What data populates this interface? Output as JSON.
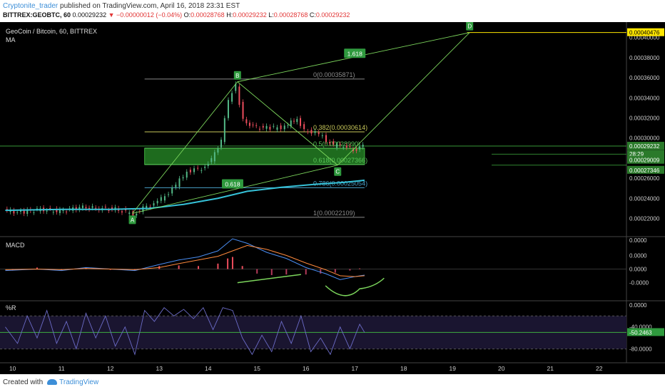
{
  "header": {
    "author": "Cryptonite_trader",
    "published_text": " published on TradingView.com, April 16, 2018 23:31 EST",
    "symbol": "BITTREX:GEOBTC, 60",
    "last": "0.00029232",
    "change": "▼ −0.00000012 (−0.04%)",
    "o_label": "O:",
    "o": "0.00028768",
    "h_label": "H:",
    "h": "0.00029232",
    "l_label": "L:",
    "l": "0.00028768",
    "c_label": "C:",
    "c": "0.00029232"
  },
  "footer": {
    "created_with": "Created with",
    "brand": "TradingView"
  },
  "colors": {
    "background": "#000000",
    "up": "#53b987",
    "down": "#eb4d5c",
    "ma": "#36c2d8",
    "fib_line": "#555555",
    "pattern": "#7cd65c",
    "zone": "#1e6b1e",
    "price_axis_bg": "#000000",
    "highlight_axis": "#ffe600",
    "macd_line": "#4a8df2",
    "signal_line": "#ff8a3d",
    "wr_line": "#6c6cc8"
  },
  "chart_data": [
    {
      "type": "candlestick",
      "title": "GeoCoin / Bitcoin, 60, BITTREX",
      "indicator_label": "MA",
      "x_ticks": [
        "10",
        "11",
        "12",
        "13",
        "14",
        "15",
        "16",
        "17",
        "18",
        "19",
        "20",
        "21",
        "22"
      ],
      "x_range": [
        9.8,
        22.5
      ],
      "y_ticks": [
        "0.00040000",
        "0.00038000",
        "0.00036000",
        "0.00034000",
        "0.00032000",
        "0.00030000",
        "0.00028000",
        "0.00026000",
        "0.00024000",
        "0.00022000"
      ],
      "y_range": [
        0.000204,
        0.000414
      ],
      "price_series": [
        {
          "x": 9.85,
          "y": 0.000228
        },
        {
          "x": 10.2,
          "y": 0.000226
        },
        {
          "x": 10.6,
          "y": 0.000229
        },
        {
          "x": 11.0,
          "y": 0.000227
        },
        {
          "x": 11.4,
          "y": 0.000231
        },
        {
          "x": 11.8,
          "y": 0.00023
        },
        {
          "x": 12.2,
          "y": 0.000229
        },
        {
          "x": 12.5,
          "y": 0.000224
        },
        {
          "x": 12.7,
          "y": 0.00023
        },
        {
          "x": 13.0,
          "y": 0.000236
        },
        {
          "x": 13.3,
          "y": 0.000249
        },
        {
          "x": 13.6,
          "y": 0.000267
        },
        {
          "x": 13.9,
          "y": 0.00027
        },
        {
          "x": 14.1,
          "y": 0.000278
        },
        {
          "x": 14.3,
          "y": 0.000298
        },
        {
          "x": 14.45,
          "y": 0.000338
        },
        {
          "x": 14.6,
          "y": 0.000352
        },
        {
          "x": 14.75,
          "y": 0.000318
        },
        {
          "x": 14.95,
          "y": 0.000311
        },
        {
          "x": 15.3,
          "y": 0.00031
        },
        {
          "x": 15.6,
          "y": 0.000311
        },
        {
          "x": 15.85,
          "y": 0.00032
        },
        {
          "x": 16.0,
          "y": 0.000308
        },
        {
          "x": 16.3,
          "y": 0.000304
        },
        {
          "x": 16.6,
          "y": 0.000292
        },
        {
          "x": 16.8,
          "y": 0.000293
        },
        {
          "x": 17.0,
          "y": 0.000288
        },
        {
          "x": 17.2,
          "y": 0.000292
        }
      ],
      "ma_series": [
        {
          "x": 9.85,
          "y": 0.000228
        },
        {
          "x": 11.0,
          "y": 0.000229
        },
        {
          "x": 12.0,
          "y": 0.000229
        },
        {
          "x": 12.8,
          "y": 0.00023
        },
        {
          "x": 13.5,
          "y": 0.000234
        },
        {
          "x": 14.2,
          "y": 0.00024
        },
        {
          "x": 14.8,
          "y": 0.000247
        },
        {
          "x": 15.5,
          "y": 0.000251
        },
        {
          "x": 16.2,
          "y": 0.000254
        },
        {
          "x": 16.8,
          "y": 0.000256
        },
        {
          "x": 17.2,
          "y": 0.000258
        }
      ],
      "fib_levels": [
        {
          "ratio": "0",
          "value": "0.00035871",
          "label": "0(0.00035871)",
          "color": "#8a8a8a"
        },
        {
          "ratio": "0.382",
          "value": "0.00030614",
          "label": "0.382(0.00030614)",
          "color": "#c8c85a"
        },
        {
          "ratio": "0.5",
          "value": "0.00028990",
          "label": "0.5(0.00028990)",
          "color": "#5ac85a"
        },
        {
          "ratio": "0.618",
          "value": "0.00027366",
          "label": "0.618(0.00027366)",
          "color": "#5ac85a"
        },
        {
          "ratio": "0.786",
          "value": "0.00025054",
          "label": "0.786(0.00025054)",
          "color": "#4aa0c8"
        },
        {
          "ratio": "1",
          "value": "0.00022109",
          "label": "1(0.00022109)",
          "color": "#8a8a8a"
        }
      ],
      "fib_x_range": [
        12.7,
        17.2
      ],
      "zone": {
        "x_from": 12.7,
        "x_to": 17.2,
        "y_from": 0.00027366,
        "y_to": 0.0002899
      },
      "pattern_points": [
        {
          "label": "A",
          "x": 12.45,
          "y": 0.000225
        },
        {
          "label": "B",
          "x": 14.6,
          "y": 0.000356
        },
        {
          "label": "C",
          "x": 16.65,
          "y": 0.000273
        },
        {
          "label": "D",
          "x": 19.35,
          "y": 0.000405
        }
      ],
      "ratio_labels": [
        {
          "text": "1.618",
          "x": 17.0,
          "y": 0.000384
        },
        {
          "text": "0.618",
          "x": 14.5,
          "y": 0.000254
        }
      ],
      "axis_badges": [
        {
          "text": "0.00040476",
          "y": 0.000405,
          "color": "#ffe600"
        },
        {
          "text": "0.00029232",
          "y": 0.000292,
          "color": "#2a7a2a"
        },
        {
          "text": "28:29",
          "y": 0.000284,
          "color": "#2a7a2a"
        },
        {
          "text": "0.00029009",
          "y": 0.000278,
          "color": "#2a7a2a"
        },
        {
          "text": "0.00027346",
          "y": 0.000268,
          "color": "#2a7a2a"
        }
      ]
    },
    {
      "type": "line",
      "title": "MACD",
      "y_ticks": [
        "0.0000",
        "0.0000",
        "0.0000",
        "-0.0000"
      ],
      "y_range": [
        -1.0,
        1.0
      ],
      "macd": [
        {
          "x": 9.85,
          "y": -0.05
        },
        {
          "x": 10.5,
          "y": 0.0
        },
        {
          "x": 11.0,
          "y": -0.05
        },
        {
          "x": 11.5,
          "y": 0.05
        },
        {
          "x": 12.0,
          "y": 0.0
        },
        {
          "x": 12.5,
          "y": -0.05
        },
        {
          "x": 13.0,
          "y": 0.15
        },
        {
          "x": 13.4,
          "y": 0.3
        },
        {
          "x": 13.8,
          "y": 0.4
        },
        {
          "x": 14.2,
          "y": 0.6
        },
        {
          "x": 14.5,
          "y": 1.0
        },
        {
          "x": 14.8,
          "y": 0.85
        },
        {
          "x": 15.2,
          "y": 0.55
        },
        {
          "x": 15.6,
          "y": 0.35
        },
        {
          "x": 16.0,
          "y": 0.05
        },
        {
          "x": 16.4,
          "y": -0.15
        },
        {
          "x": 16.7,
          "y": -0.35
        },
        {
          "x": 17.0,
          "y": -0.25
        },
        {
          "x": 17.2,
          "y": -0.2
        }
      ],
      "signal": [
        {
          "x": 9.85,
          "y": -0.02
        },
        {
          "x": 10.5,
          "y": 0.0
        },
        {
          "x": 11.0,
          "y": -0.02
        },
        {
          "x": 11.5,
          "y": 0.02
        },
        {
          "x": 12.0,
          "y": 0.0
        },
        {
          "x": 12.5,
          "y": -0.02
        },
        {
          "x": 13.0,
          "y": 0.05
        },
        {
          "x": 13.4,
          "y": 0.18
        },
        {
          "x": 13.8,
          "y": 0.3
        },
        {
          "x": 14.2,
          "y": 0.42
        },
        {
          "x": 14.5,
          "y": 0.6
        },
        {
          "x": 14.8,
          "y": 0.78
        },
        {
          "x": 15.2,
          "y": 0.65
        },
        {
          "x": 15.6,
          "y": 0.45
        },
        {
          "x": 16.0,
          "y": 0.2
        },
        {
          "x": 16.4,
          "y": -0.02
        },
        {
          "x": 16.7,
          "y": -0.22
        },
        {
          "x": 17.0,
          "y": -0.25
        },
        {
          "x": 17.2,
          "y": -0.22
        }
      ],
      "histogram": [
        {
          "x": 10.0,
          "y": -0.05
        },
        {
          "x": 10.5,
          "y": 0.05
        },
        {
          "x": 11.0,
          "y": -0.04
        },
        {
          "x": 11.5,
          "y": 0.04
        },
        {
          "x": 12.0,
          "y": -0.03
        },
        {
          "x": 12.5,
          "y": -0.05
        },
        {
          "x": 13.0,
          "y": 0.1
        },
        {
          "x": 13.4,
          "y": 0.12
        },
        {
          "x": 13.8,
          "y": 0.1
        },
        {
          "x": 14.2,
          "y": 0.18
        },
        {
          "x": 14.4,
          "y": 0.35
        },
        {
          "x": 14.5,
          "y": 0.4
        },
        {
          "x": 14.7,
          "y": 0.1
        },
        {
          "x": 15.0,
          "y": -0.15
        },
        {
          "x": 15.3,
          "y": -0.2
        },
        {
          "x": 15.6,
          "y": -0.18
        },
        {
          "x": 16.0,
          "y": -0.18
        },
        {
          "x": 16.3,
          "y": -0.15
        },
        {
          "x": 16.6,
          "y": -0.12
        },
        {
          "x": 16.9,
          "y": -0.05
        },
        {
          "x": 17.1,
          "y": 0.02
        }
      ],
      "divergence_line": [
        {
          "x": 14.6,
          "y": -0.45
        },
        {
          "x": 15.9,
          "y": -0.18
        }
      ]
    },
    {
      "type": "line",
      "title": "%R",
      "y_ticks": [
        "0.0000",
        "-40.0000",
        "-80.0000"
      ],
      "y_range": [
        -100,
        5
      ],
      "band": [
        -20,
        -80
      ],
      "current_label": "-50.2463",
      "series": [
        {
          "x": 9.85,
          "y": -40
        },
        {
          "x": 10.1,
          "y": -70
        },
        {
          "x": 10.3,
          "y": -20
        },
        {
          "x": 10.5,
          "y": -60
        },
        {
          "x": 10.7,
          "y": -10
        },
        {
          "x": 10.9,
          "y": -70
        },
        {
          "x": 11.1,
          "y": -30
        },
        {
          "x": 11.3,
          "y": -80
        },
        {
          "x": 11.5,
          "y": -15
        },
        {
          "x": 11.7,
          "y": -60
        },
        {
          "x": 11.9,
          "y": -20
        },
        {
          "x": 12.1,
          "y": -75
        },
        {
          "x": 12.3,
          "y": -40
        },
        {
          "x": 12.5,
          "y": -90
        },
        {
          "x": 12.7,
          "y": -10
        },
        {
          "x": 12.9,
          "y": -30
        },
        {
          "x": 13.1,
          "y": -5
        },
        {
          "x": 13.3,
          "y": -20
        },
        {
          "x": 13.5,
          "y": -8
        },
        {
          "x": 13.7,
          "y": -25
        },
        {
          "x": 13.9,
          "y": -5
        },
        {
          "x": 14.1,
          "y": -45
        },
        {
          "x": 14.3,
          "y": -5
        },
        {
          "x": 14.5,
          "y": -10
        },
        {
          "x": 14.7,
          "y": -60
        },
        {
          "x": 14.9,
          "y": -90
        },
        {
          "x": 15.1,
          "y": -55
        },
        {
          "x": 15.3,
          "y": -85
        },
        {
          "x": 15.5,
          "y": -30
        },
        {
          "x": 15.7,
          "y": -70
        },
        {
          "x": 15.9,
          "y": -20
        },
        {
          "x": 16.1,
          "y": -85
        },
        {
          "x": 16.3,
          "y": -60
        },
        {
          "x": 16.5,
          "y": -90
        },
        {
          "x": 16.7,
          "y": -40
        },
        {
          "x": 16.9,
          "y": -80
        },
        {
          "x": 17.1,
          "y": -35
        },
        {
          "x": 17.2,
          "y": -50
        }
      ]
    }
  ]
}
